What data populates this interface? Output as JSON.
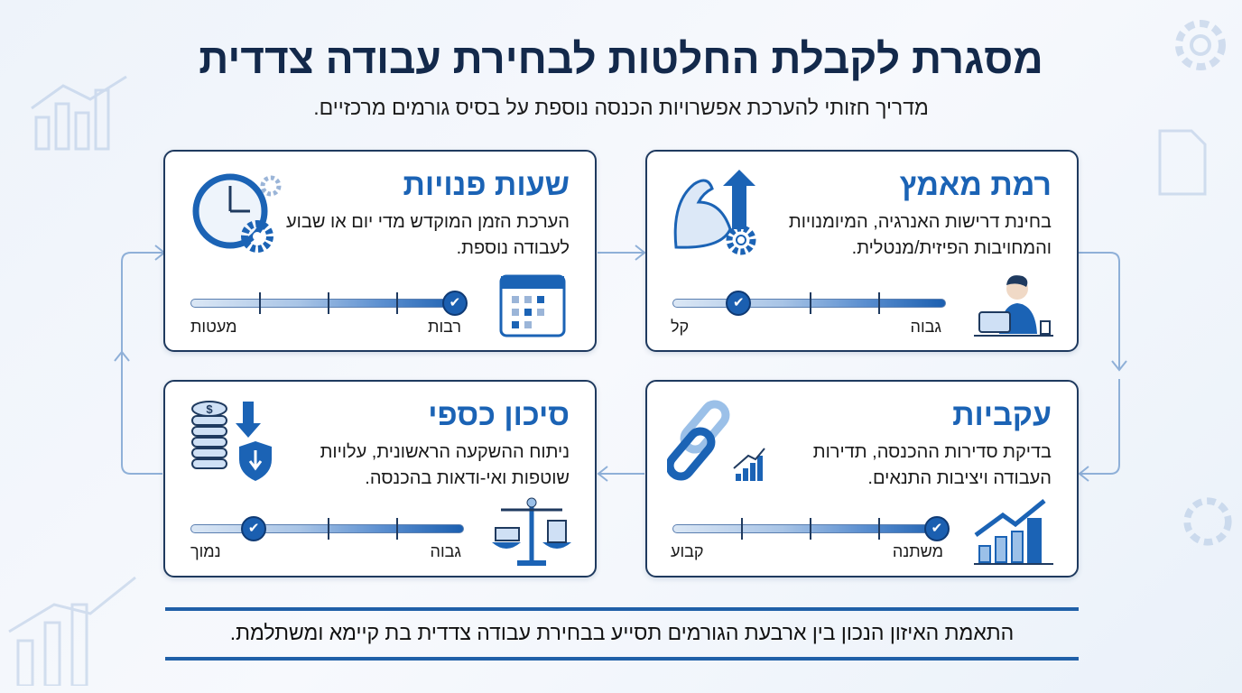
{
  "header": {
    "title": "מסגרת לקבלת החלטות לבחירת עבודה צדדית",
    "subtitle": "מדריך חזותי להערכת אפשרויות הכנסה נוספת על בסיס גורמים מרכזיים."
  },
  "cards": [
    {
      "title": "רמת מאמץ",
      "description": "בחינת דרישות האנרגיה, המיומנויות והמחויבות הפיזית/מנטלית.",
      "scale_right_label": "גבוה",
      "scale_left_label": "קל",
      "level_toward_left_label": 0.76,
      "icon_top": "flexed-arm-gear-arrow-icon",
      "icon_bottom": "person-laptop-icon"
    },
    {
      "title": "שעות פנויות",
      "description": "הערכת הזמן המוקדש מדי יום או שבוע לעבודה נוספת.",
      "scale_right_label": "רבות",
      "scale_left_label": "מעטות",
      "level_toward_left_label": 0.03,
      "icon_top": "clock-gear-icon",
      "icon_bottom": "calendar-icon"
    },
    {
      "title": "עקביות",
      "description": "בדיקת סדירות ההכנסה, תדירות העבודה ויציבות התנאים.",
      "scale_right_label": "משתנה",
      "scale_left_label": "קבוע",
      "level_toward_left_label": 0.03,
      "icon_top": "chain-link-chart-icon",
      "icon_bottom": "growth-chart-icon"
    },
    {
      "title": "סיכון כספי",
      "description": "ניתוח ההשקעה הראשונית, עלויות שוטפות ואי-ודאות בהכנסה.",
      "scale_right_label": "גבוה",
      "scale_left_label": "נמוך",
      "level_toward_left_label": 0.77,
      "icon_top": "coins-shield-icon",
      "icon_bottom": "balance-scale-icon"
    }
  ],
  "footer": {
    "text": "התאמת האיזון הנכון בין ארבעת הגורמים תסייע בבחירת עבודה צדדית בת קיימא ומשתלמת."
  },
  "colors": {
    "accent": "#1b63b5",
    "title": "#13294b",
    "border": "#1f3a5f"
  }
}
